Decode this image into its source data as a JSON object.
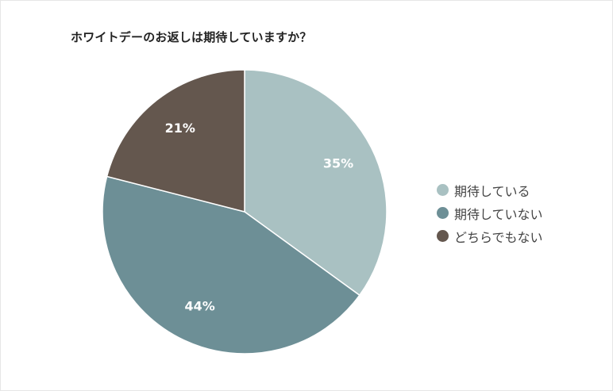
{
  "chart_data": {
    "type": "pie",
    "title": "ホワイトデーのお返しは期待していますか？",
    "categories": [
      "期待している",
      "期待していない",
      "どちらでもない"
    ],
    "values": [
      35,
      44,
      21
    ],
    "value_labels": [
      "35%",
      "44%",
      "21%"
    ],
    "colors": [
      "#a9c1c2",
      "#6d8f96",
      "#64574e"
    ],
    "start_angle": "12 o'clock, clockwise",
    "legend_position": "right"
  }
}
